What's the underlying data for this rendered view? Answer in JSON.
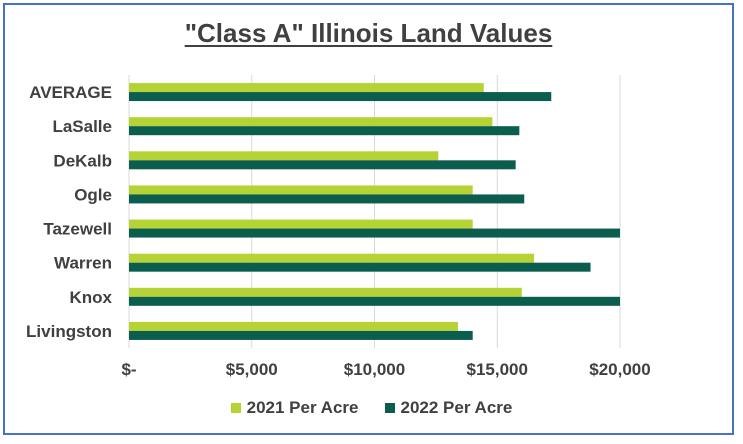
{
  "chart_data": {
    "type": "bar",
    "orientation": "horizontal",
    "title": "\"Class A\" Illinois Land Values",
    "categories": [
      "AVERAGE",
      "LaSalle",
      "DeKalb",
      "Ogle",
      "Tazewell",
      "Warren",
      "Knox",
      "Livingston"
    ],
    "series": [
      {
        "name": "2021 Per Acre",
        "color": "#b5d334",
        "values": [
          14450,
          14800,
          12600,
          14000,
          14000,
          16500,
          16000,
          13400
        ]
      },
      {
        "name": "2022 Per Acre",
        "color": "#0b5e4e",
        "values": [
          17200,
          15900,
          15750,
          16100,
          20000,
          18800,
          20000,
          14000
        ]
      }
    ],
    "x_ticks": [
      0,
      5000,
      10000,
      15000,
      20000
    ],
    "x_tick_labels": [
      "$-",
      "$5,000",
      "$10,000",
      "$15,000",
      "$20,000"
    ],
    "xlim": [
      0,
      20000
    ],
    "grid": true,
    "legend_position": "bottom"
  }
}
